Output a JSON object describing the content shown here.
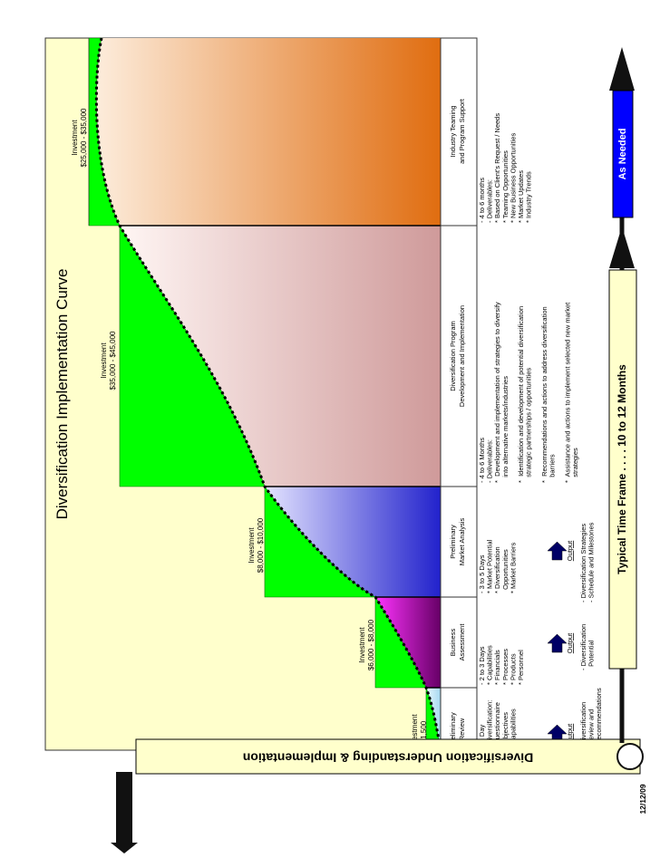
{
  "title": "Diversification Implementation Curve",
  "left_banner": "Diversification Understanding & Implementation",
  "bottom_banner": "Typical Time Frame . . . . 10 to 12 Months",
  "as_needed": "As Needed",
  "date": "12/12/09",
  "output_label": "Output",
  "colors": {
    "background_panel": "#FFFFCC",
    "step_green": "#00FF00",
    "navy_box": "#000066",
    "orange": "#E06D10",
    "purple": "#800080",
    "blue": "#3333CC"
  },
  "investments": [
    {
      "label": "Investment",
      "value": "$1,500"
    },
    {
      "label": "Investment",
      "value": "$6,000 - $8,000"
    },
    {
      "label": "Investment",
      "value": "$8,000 - $10,000"
    },
    {
      "label": "Investment",
      "value": "$35,000 - $45,000"
    },
    {
      "label": "Investment",
      "value": "$25,000 - $35,000"
    }
  ],
  "phases": [
    {
      "header": [
        "Preliminary",
        "Review"
      ],
      "details": [
        "- ½ Day",
        "- Diversification:",
        "  Questionnaire",
        "* Objectives",
        "* Capabilities"
      ],
      "output": [
        "- Diversification",
        "  Review and",
        "  Recommendations"
      ]
    },
    {
      "header": [
        "Business",
        "Assessment"
      ],
      "details": [
        "- 2 to 3 Days",
        "* Capabilities",
        "* Financials",
        "* Processes",
        "* Products",
        "* Personnel"
      ],
      "output": [
        "- Diversification",
        "  Potential"
      ]
    },
    {
      "header": [
        "Preliminary",
        "Market Analysis"
      ],
      "details": [
        "- 3 to 5 Days",
        "* Market Potential",
        "* Diversification",
        "  Opportunities",
        "* Market Barriers"
      ],
      "output": [
        "- Diversification Strategies",
        "- Schedule and Milestones"
      ]
    },
    {
      "header": [
        "Diversification Program",
        "Development and Implementation"
      ],
      "details": [
        "- 4 to 6 Months",
        "- Deliverables:",
        "*  Development and implementation of strategies to diversify",
        "   into alternative markets/industries",
        "",
        "*  Identification and development of potential diversification",
        "   strategic partnerships / opportunities",
        "",
        "*  Recommendations and actions to address diversification",
        "   barriers",
        "",
        "*  Assistance and actions to implement selected new market",
        "   strategies"
      ],
      "output": []
    },
    {
      "header": [
        "Industry Teaming",
        "and Program Support"
      ],
      "details": [
        "- 4 to 6 months",
        "- Deliverables:",
        "* Based on Client's Request / Needs",
        "* Teaming Opportunities",
        "* New Business Opportunities",
        "* Market Updates",
        "* Industry Trends"
      ],
      "output": []
    }
  ]
}
